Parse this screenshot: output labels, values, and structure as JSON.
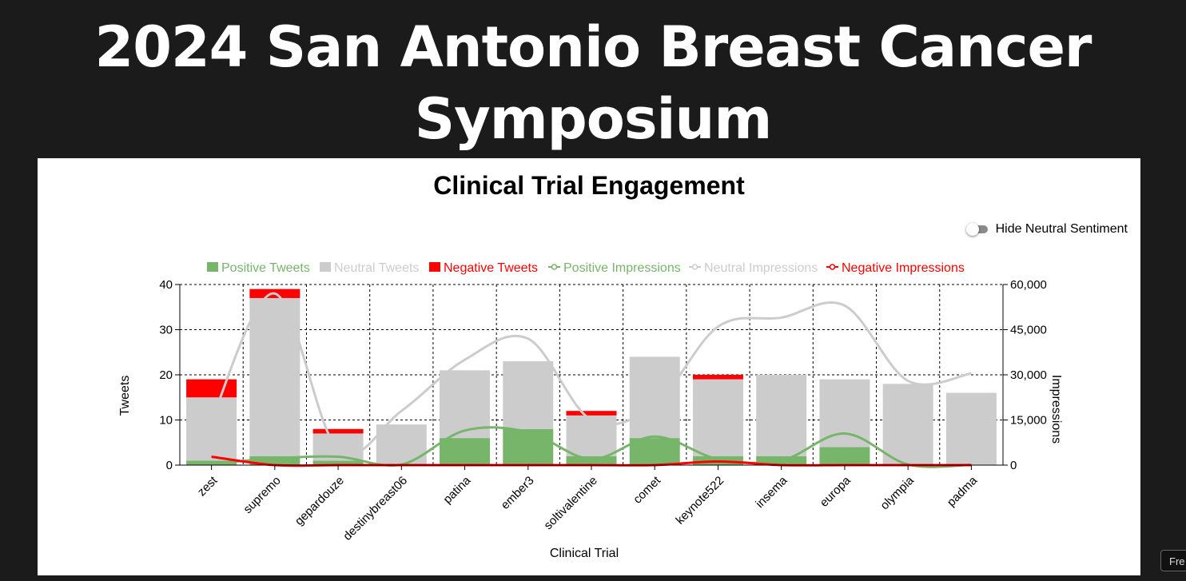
{
  "page": {
    "title": "2024 San Antonio Breast Cancer Symposium"
  },
  "toggle": {
    "label": "Hide Neutral Sentiment",
    "checked": false
  },
  "corner_button": {
    "label": "Fre"
  },
  "colors": {
    "positive": "#77b56b",
    "neutral": "#cccccc",
    "negative": "#ff0000"
  },
  "chart_data": {
    "type": "bar",
    "title": "Clinical Trial Engagement",
    "xlabel": "Clinical Trial",
    "ylabel": "Tweets",
    "y2label": "Impressions",
    "ylim": [
      0,
      40
    ],
    "y2lim": [
      0,
      60000
    ],
    "yticks": [
      "0",
      "10",
      "20",
      "30",
      "40"
    ],
    "y2ticks": [
      "0",
      "15,000",
      "30,000",
      "45,000",
      "60,000"
    ],
    "grid": true,
    "legend_position": "top",
    "categories": [
      "zest",
      "supremo",
      "gepardouze",
      "destinybreast06",
      "patina",
      "ember3",
      "soltivalentine",
      "comet",
      "keynote522",
      "insema",
      "europa",
      "olympia",
      "padma"
    ],
    "bar_series": [
      {
        "name": "Positive Tweets",
        "color": "#77b56b",
        "values": [
          1,
          2,
          1,
          0,
          6,
          8,
          2,
          6,
          2,
          2,
          4,
          0,
          0
        ]
      },
      {
        "name": "Neutral Tweets",
        "color": "#cccccc",
        "values": [
          14,
          35,
          6,
          9,
          15,
          15,
          9,
          18,
          17,
          18,
          15,
          18,
          16
        ]
      },
      {
        "name": "Negative Tweets",
        "color": "#ff0000",
        "values": [
          4,
          2,
          1,
          0,
          0,
          0,
          1,
          0,
          1,
          0,
          0,
          0,
          0
        ]
      }
    ],
    "line_series": [
      {
        "name": "Positive Impressions",
        "color": "#77b56b",
        "values": [
          500,
          2200,
          2800,
          200,
          11500,
          11000,
          2000,
          9500,
          2000,
          1500,
          10500,
          200,
          100
        ]
      },
      {
        "name": "Neutral Impressions",
        "color": "#cccccc",
        "values": [
          15000,
          57000,
          5000,
          18000,
          35000,
          42000,
          15000,
          20000,
          46000,
          49000,
          53000,
          28000,
          30500
        ]
      },
      {
        "name": "Negative Impressions",
        "color": "#ff0000",
        "values": [
          2800,
          0,
          0,
          0,
          0,
          0,
          0,
          0,
          1200,
          0,
          0,
          0,
          0
        ]
      }
    ]
  }
}
